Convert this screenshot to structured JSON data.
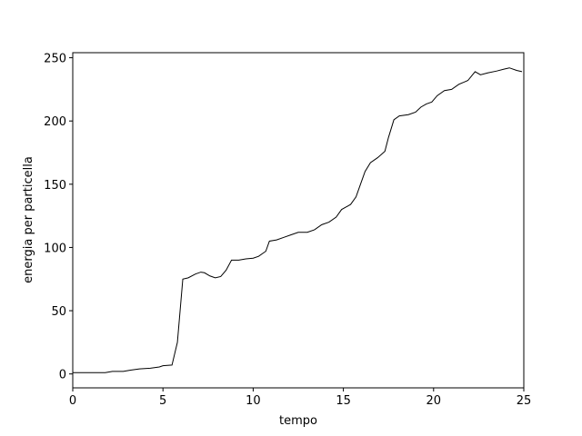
{
  "chart_data": {
    "type": "line",
    "x_label": "tempo",
    "y_label": "energia per particella",
    "x": [
      0,
      1,
      1.8,
      2.2,
      2.8,
      3.2,
      3.7,
      4.3,
      4.8,
      5,
      5.5,
      5.8,
      6.1,
      6.4,
      6.8,
      7.1,
      7.3,
      7.6,
      7.9,
      8.2,
      8.5,
      8.8,
      9.2,
      9.6,
      10,
      10.3,
      10.7,
      10.9,
      11.3,
      11.7,
      12.1,
      12.5,
      13,
      13.4,
      13.8,
      14.2,
      14.6,
      14.9,
      15.4,
      15.7,
      15.9,
      16.2,
      16.5,
      16.9,
      17.3,
      17.5,
      17.8,
      18.1,
      18.6,
      19,
      19.3,
      19.6,
      19.9,
      20.2,
      20.6,
      21,
      21.4,
      21.9,
      22.3,
      22.6,
      23,
      23.5,
      23.9,
      24.2,
      24.6,
      24.9
    ],
    "series": [
      {
        "color": "#000000",
        "values": [
          1,
          1,
          1,
          2,
          2,
          3,
          4,
          4.5,
          5.5,
          6.5,
          7,
          25,
          75,
          76,
          79,
          80.5,
          80,
          77.5,
          76,
          77,
          82,
          90,
          90,
          91,
          91.5,
          93,
          97,
          105,
          106,
          108,
          110,
          112,
          112,
          114,
          118,
          120,
          124,
          130,
          134,
          140,
          148,
          160,
          167,
          171,
          176,
          187,
          201,
          204,
          205,
          207,
          211,
          213.5,
          215,
          220,
          224,
          225,
          229,
          232,
          239,
          236.5,
          238,
          239.5,
          241,
          242,
          240,
          239
        ]
      }
    ],
    "xlim": [
      0,
      25
    ],
    "ylim": [
      -11,
      254
    ],
    "xticks": [
      0,
      5,
      10,
      15,
      20,
      25
    ],
    "yticks": [
      0,
      50,
      100,
      150,
      200,
      250
    ]
  }
}
